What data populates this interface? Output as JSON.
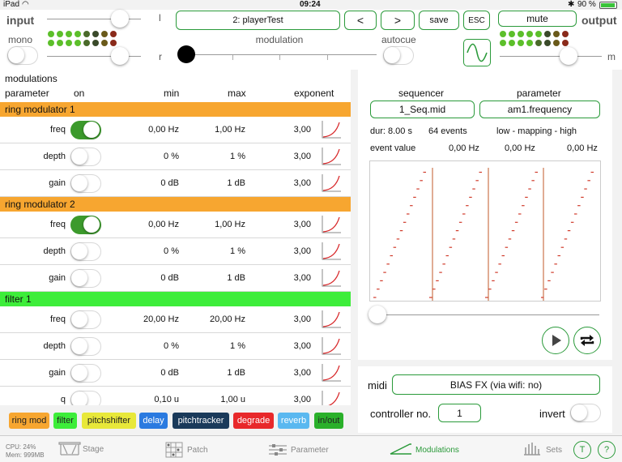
{
  "status": {
    "carrier": "iPad",
    "time": "09:24",
    "battery": "90 %"
  },
  "header": {
    "input_title": "input",
    "mono_label": "mono",
    "l_label": "l",
    "r_label": "r",
    "preset": "2: playerTest",
    "prev": "<",
    "next": ">",
    "save": "save",
    "esc": "ESC",
    "mute": "mute",
    "output_title": "output",
    "m_label": "m",
    "modulation_label": "modulation",
    "autocue_label": "autocue"
  },
  "leds": {
    "in_top": [
      "#5cbf2a",
      "#5cbf2a",
      "#5cbf2a",
      "#5cbf2a",
      "#4a6a2a",
      "#3a4a2a",
      "#6a5a1a",
      "#8a2a1a"
    ],
    "in_bot": [
      "#5cbf2a",
      "#5cbf2a",
      "#5cbf2a",
      "#5cbf2a",
      "#4a6a2a",
      "#3a4a2a",
      "#6a5a1a",
      "#8a2a1a"
    ],
    "out_top": [
      "#5cbf2a",
      "#5cbf2a",
      "#5cbf2a",
      "#5cbf2a",
      "#5cbf2a",
      "#3a4a2a",
      "#6a5a1a",
      "#8a2a1a"
    ],
    "out_bot": [
      "#5cbf2a",
      "#5cbf2a",
      "#5cbf2a",
      "#5cbf2a",
      "#4a6a2a",
      "#3a4a2a",
      "#6a5a1a",
      "#8a2a1a"
    ]
  },
  "mods": {
    "title": "modulations",
    "columns": {
      "parameter": "parameter",
      "on": "on",
      "min": "min",
      "max": "max",
      "exponent": "exponent"
    },
    "sections": [
      {
        "name": "ring modulator 1",
        "color": "#f7a630",
        "rows": [
          {
            "param": "freq",
            "on": true,
            "min": "0,00 Hz",
            "max": "1,00 Hz",
            "exp": "3,00"
          },
          {
            "param": "depth",
            "on": false,
            "min": "0 %",
            "max": "1 %",
            "exp": "3,00"
          },
          {
            "param": "gain",
            "on": false,
            "min": "0 dB",
            "max": "1 dB",
            "exp": "3,00"
          }
        ]
      },
      {
        "name": "ring modulator 2",
        "color": "#f7a630",
        "rows": [
          {
            "param": "freq",
            "on": true,
            "min": "0,00 Hz",
            "max": "1,00 Hz",
            "exp": "3,00"
          },
          {
            "param": "depth",
            "on": false,
            "min": "0 %",
            "max": "1 %",
            "exp": "3,00"
          },
          {
            "param": "gain",
            "on": false,
            "min": "0 dB",
            "max": "1 dB",
            "exp": "3,00"
          }
        ]
      },
      {
        "name": "filter 1",
        "color": "#3ded3a",
        "rows": [
          {
            "param": "freq",
            "on": false,
            "min": "20,00 Hz",
            "max": "20,00 Hz",
            "exp": "3,00"
          },
          {
            "param": "depth",
            "on": false,
            "min": "0 %",
            "max": "1 %",
            "exp": "3,00"
          },
          {
            "param": "gain",
            "on": false,
            "min": "0 dB",
            "max": "1 dB",
            "exp": "3,00"
          },
          {
            "param": "q",
            "on": false,
            "min": "0,10 u",
            "max": "1,00 u",
            "exp": "3,00"
          }
        ]
      }
    ]
  },
  "sequencer": {
    "seq_title": "sequencer",
    "param_title": "parameter",
    "seq_file": "1_Seq.mid",
    "param_name": "am1.frequency",
    "dur": "dur: 8.00 s",
    "events": "64 events",
    "mapping": "low - mapping - high",
    "event_value_label": "event value",
    "ev_low": "0,00 Hz",
    "ev_map": "0,00 Hz",
    "ev_high": "0,00 Hz"
  },
  "midi": {
    "label": "midi",
    "device": "BIAS FX (via wifi: no)",
    "controller_label": "controller no.",
    "controller_value": "1",
    "invert_label": "invert"
  },
  "chips": [
    {
      "label": "ring mod",
      "bg": "#f7a630",
      "fg": "#222"
    },
    {
      "label": "filter",
      "bg": "#3ded3a",
      "fg": "#222"
    },
    {
      "label": "pitchshifter",
      "bg": "#e8e83a",
      "fg": "#222"
    },
    {
      "label": "delay",
      "bg": "#2a7ae0",
      "fg": "#fff"
    },
    {
      "label": "pitchtracker",
      "bg": "#1a3a5a",
      "fg": "#fff"
    },
    {
      "label": "degrade",
      "bg": "#e8282a",
      "fg": "#fff"
    },
    {
      "label": "reverb",
      "bg": "#5ab8f0",
      "fg": "#fff"
    },
    {
      "label": "in/out",
      "bg": "#2ab02a",
      "fg": "#222"
    }
  ],
  "tabbar": {
    "cpu": "CPU: 24%",
    "mem": "Mem: 999MB",
    "stage": "Stage",
    "patch": "Patch",
    "parameter": "Parameter",
    "modulations": "Modulations",
    "sets": "Sets",
    "t": "T",
    "help": "?"
  }
}
